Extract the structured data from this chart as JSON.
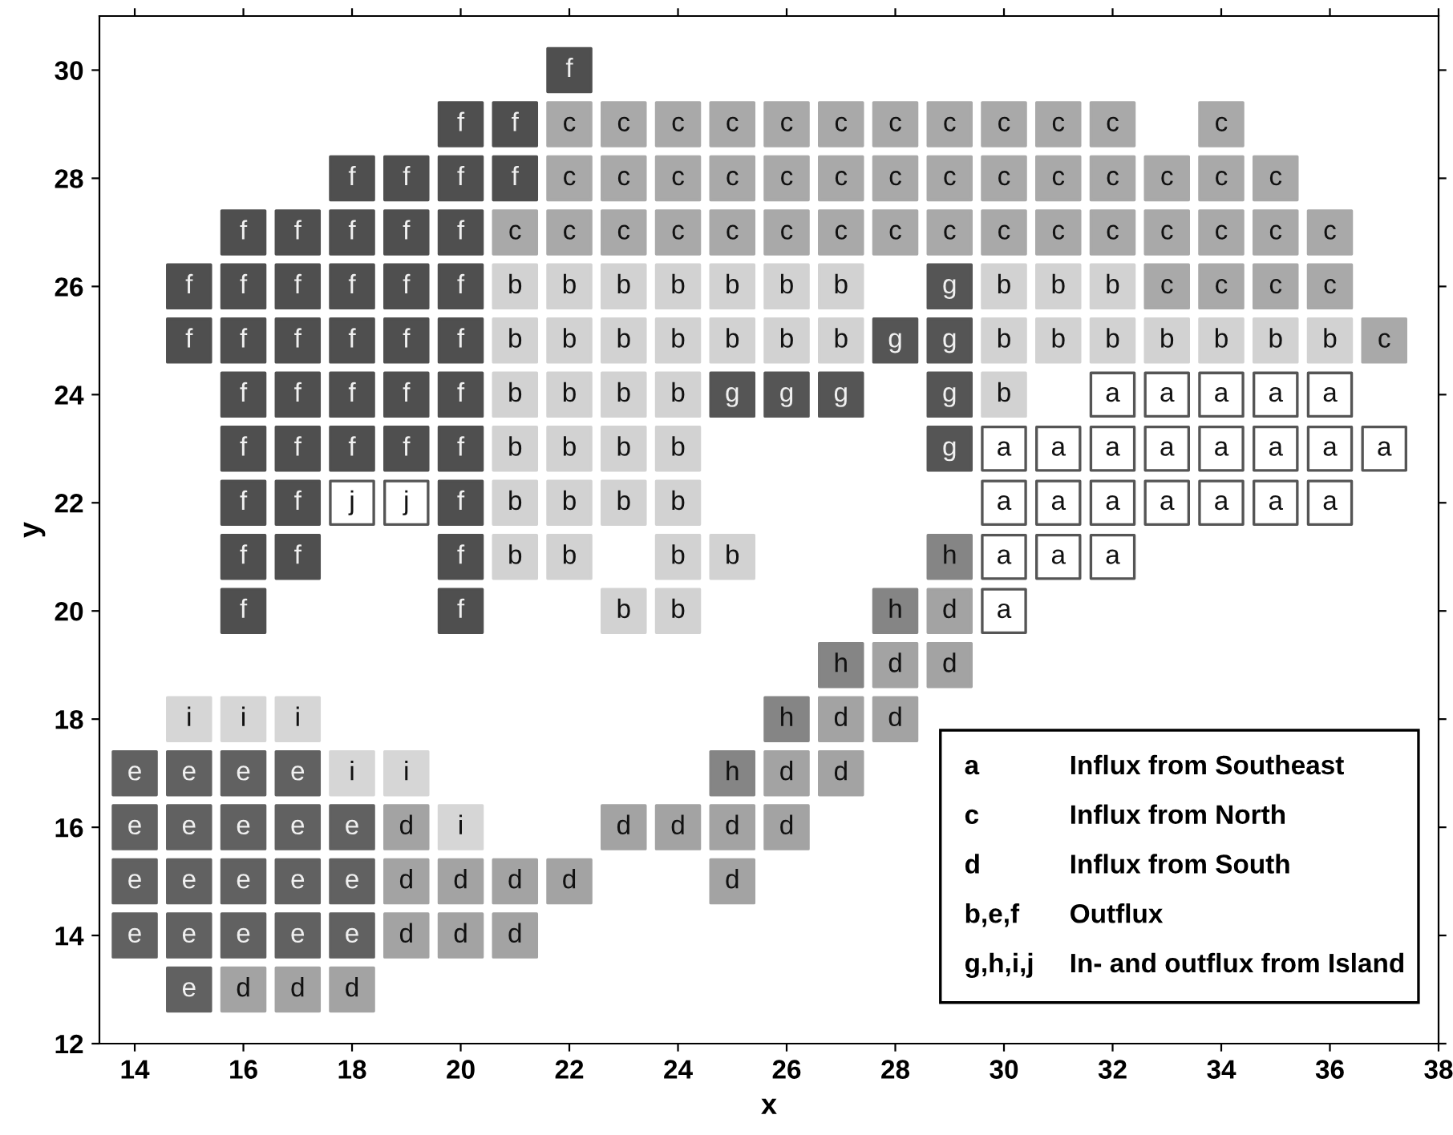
{
  "chart_data": {
    "type": "scatter",
    "xlabel": "x",
    "ylabel": "y",
    "xlim": [
      13.35,
      38
    ],
    "ylim": [
      12,
      31
    ],
    "xticks": [
      14,
      16,
      18,
      20,
      22,
      24,
      26,
      28,
      30,
      32,
      34,
      36,
      38
    ],
    "yticks": [
      12,
      14,
      16,
      18,
      20,
      22,
      24,
      26,
      28,
      30
    ],
    "grid": false,
    "marker": "square",
    "annotations": [
      "a",
      "Influx from Southeast",
      "c",
      "Influx from North",
      "d",
      "Influx from South",
      "b,e,f",
      "Outflux",
      "g,h,i,j",
      "In- and outflux from Island"
    ],
    "series": [
      {
        "color": "#ffffff",
        "x": [
          32,
          33,
          34,
          35,
          36,
          30,
          31,
          32,
          33,
          34,
          35,
          36,
          37,
          30,
          31,
          32,
          33,
          34,
          35,
          36,
          30,
          31,
          32,
          30
        ],
        "values": [
          24,
          24,
          24,
          24,
          24,
          23,
          23,
          23,
          23,
          23,
          23,
          23,
          23,
          22,
          22,
          22,
          22,
          22,
          22,
          22,
          21,
          21,
          21,
          20
        ],
        "value_labels": [
          "a",
          "a",
          "a",
          "a",
          "a",
          "a",
          "a",
          "a",
          "a",
          "a",
          "a",
          "a",
          "a",
          "a",
          "a",
          "a",
          "a",
          "a",
          "a",
          "a",
          "a",
          "a",
          "a",
          "a"
        ]
      },
      {
        "color": "#d2d2d2",
        "x": [
          21,
          22,
          23,
          24,
          25,
          26,
          27,
          30,
          31,
          32,
          21,
          22,
          23,
          24,
          25,
          26,
          27,
          30,
          31,
          32,
          33,
          34,
          35,
          36,
          21,
          22,
          23,
          24,
          30,
          21,
          22,
          23,
          24,
          21,
          22,
          23,
          24,
          21,
          22,
          24,
          25,
          23,
          24
        ],
        "values": [
          26,
          26,
          26,
          26,
          26,
          26,
          26,
          26,
          26,
          26,
          25,
          25,
          25,
          25,
          25,
          25,
          25,
          25,
          25,
          25,
          25,
          25,
          25,
          25,
          24,
          24,
          24,
          24,
          24,
          23,
          23,
          23,
          23,
          22,
          22,
          22,
          22,
          21,
          21,
          21,
          21,
          20,
          20
        ],
        "value_labels": [
          "b",
          "b",
          "b",
          "b",
          "b",
          "b",
          "b",
          "b",
          "b",
          "b",
          "b",
          "b",
          "b",
          "b",
          "b",
          "b",
          "b",
          "b",
          "b",
          "b",
          "b",
          "b",
          "b",
          "b",
          "b",
          "b",
          "b",
          "b",
          "b",
          "b",
          "b",
          "b",
          "b",
          "b",
          "b",
          "b",
          "b",
          "b",
          "b",
          "b",
          "b",
          "b",
          "b"
        ]
      },
      {
        "color": "#a9a9a9",
        "x": [
          22,
          23,
          24,
          25,
          26,
          27,
          28,
          29,
          30,
          31,
          32,
          34,
          22,
          23,
          24,
          25,
          26,
          27,
          28,
          29,
          30,
          31,
          32,
          33,
          34,
          35,
          21,
          22,
          23,
          24,
          25,
          26,
          27,
          28,
          29,
          30,
          31,
          32,
          33,
          34,
          35,
          36,
          33,
          34,
          35,
          36,
          37
        ],
        "values": [
          29,
          29,
          29,
          29,
          29,
          29,
          29,
          29,
          29,
          29,
          29,
          29,
          28,
          28,
          28,
          28,
          28,
          28,
          28,
          28,
          28,
          28,
          28,
          28,
          28,
          28,
          27,
          27,
          27,
          27,
          27,
          27,
          27,
          27,
          27,
          27,
          27,
          27,
          27,
          27,
          27,
          27,
          26,
          26,
          26,
          26,
          25
        ],
        "value_labels": [
          "c",
          "c",
          "c",
          "c",
          "c",
          "c",
          "c",
          "c",
          "c",
          "c",
          "c",
          "c",
          "c",
          "c",
          "c",
          "c",
          "c",
          "c",
          "c",
          "c",
          "c",
          "c",
          "c",
          "c",
          "c",
          "c",
          "c",
          "c",
          "c",
          "c",
          "c",
          "c",
          "c",
          "c",
          "c",
          "c",
          "c",
          "c",
          "c",
          "c",
          "c",
          "c",
          "c",
          "c",
          "c",
          "c",
          "c"
        ]
      },
      {
        "color": "#a3a3a3",
        "x": [
          29,
          28,
          29,
          27,
          28,
          26,
          27,
          19,
          23,
          24,
          25,
          26,
          19,
          20,
          21,
          22,
          25,
          19,
          20,
          21,
          16,
          17,
          18
        ],
        "values": [
          20,
          19,
          19,
          18,
          18,
          17,
          17,
          16,
          16,
          16,
          16,
          16,
          15,
          15,
          15,
          15,
          15,
          14,
          14,
          14,
          13,
          13,
          13
        ],
        "value_labels": [
          "d",
          "d",
          "d",
          "d",
          "d",
          "d",
          "d",
          "d",
          "d",
          "d",
          "d",
          "d",
          "d",
          "d",
          "d",
          "d",
          "d",
          "d",
          "d",
          "d",
          "d",
          "d",
          "d"
        ]
      },
      {
        "color": "#616161",
        "x": [
          14,
          15,
          16,
          17,
          14,
          15,
          16,
          17,
          18,
          14,
          15,
          16,
          17,
          18,
          14,
          15,
          16,
          17,
          18,
          15
        ],
        "values": [
          17,
          17,
          17,
          17,
          16,
          16,
          16,
          16,
          16,
          15,
          15,
          15,
          15,
          15,
          14,
          14,
          14,
          14,
          14,
          13
        ],
        "value_labels": [
          "e",
          "e",
          "e",
          "e",
          "e",
          "e",
          "e",
          "e",
          "e",
          "e",
          "e",
          "e",
          "e",
          "e",
          "e",
          "e",
          "e",
          "e",
          "e",
          "e"
        ]
      },
      {
        "color": "#4f4f4f",
        "x": [
          22,
          20,
          21,
          18,
          19,
          20,
          21,
          16,
          17,
          18,
          19,
          20,
          15,
          16,
          17,
          18,
          19,
          20,
          15,
          16,
          17,
          18,
          19,
          20,
          16,
          17,
          18,
          19,
          20,
          16,
          17,
          18,
          19,
          20,
          16,
          17,
          20,
          16,
          17,
          20,
          16,
          20
        ],
        "values": [
          30,
          29,
          29,
          28,
          28,
          28,
          28,
          27,
          27,
          27,
          27,
          27,
          26,
          26,
          26,
          26,
          26,
          26,
          25,
          25,
          25,
          25,
          25,
          25,
          24,
          24,
          24,
          24,
          24,
          23,
          23,
          23,
          23,
          23,
          22,
          22,
          22,
          21,
          21,
          21,
          20,
          20
        ],
        "value_labels": [
          "f",
          "f",
          "f",
          "f",
          "f",
          "f",
          "f",
          "f",
          "f",
          "f",
          "f",
          "f",
          "f",
          "f",
          "f",
          "f",
          "f",
          "f",
          "f",
          "f",
          "f",
          "f",
          "f",
          "f",
          "f",
          "f",
          "f",
          "f",
          "f",
          "f",
          "f",
          "f",
          "f",
          "f",
          "f",
          "f",
          "f",
          "f",
          "f",
          "f",
          "f",
          "f"
        ]
      },
      {
        "color": "#555555",
        "x": [
          29,
          28,
          29,
          25,
          26,
          27,
          29,
          29
        ],
        "values": [
          26,
          25,
          25,
          24,
          24,
          24,
          24,
          23
        ],
        "value_labels": [
          "g",
          "g",
          "g",
          "g",
          "g",
          "g",
          "g",
          "g"
        ]
      },
      {
        "color": "#858585",
        "x": [
          29,
          28,
          27,
          26,
          25
        ],
        "values": [
          21,
          20,
          19,
          18,
          17
        ],
        "value_labels": [
          "h",
          "h",
          "h",
          "h",
          "h"
        ]
      },
      {
        "color": "#d6d6d6",
        "x": [
          15,
          16,
          17,
          18,
          19,
          20
        ],
        "values": [
          18,
          18,
          18,
          17,
          17,
          16
        ],
        "value_labels": [
          "i",
          "i",
          "i",
          "i",
          "i",
          "i"
        ]
      },
      {
        "color": "#ffffff",
        "x": [
          18,
          19
        ],
        "values": [
          22,
          22
        ],
        "value_labels": [
          "j",
          "j"
        ]
      }
    ]
  }
}
